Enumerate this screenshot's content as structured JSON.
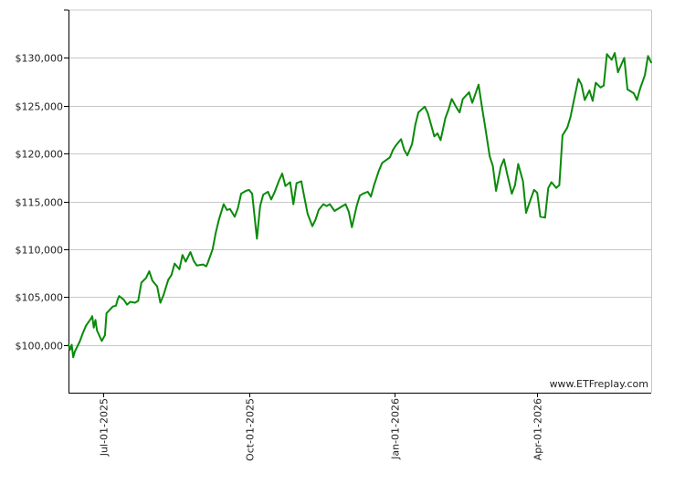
{
  "watermark": "www.ETFreplay.com",
  "colors": {
    "line": "#0a8a0a",
    "grid": "#c8c8c8",
    "axis": "#000000",
    "background": "#ffffff"
  },
  "chart_data": {
    "type": "line",
    "title": "",
    "xlabel": "",
    "ylabel": "",
    "ylim": [
      95000,
      135000
    ],
    "xlim": [
      "2025-06-09",
      "2026-06-12"
    ],
    "yticks": [
      100000,
      105000,
      110000,
      115000,
      120000,
      125000,
      130000
    ],
    "ytick_labels": [
      "$100,000",
      "$105,000",
      "$110,000",
      "$115,000",
      "$120,000",
      "$125,000",
      "$130,000"
    ],
    "xticks": [
      "2025-07-01",
      "2025-10-01",
      "2026-01-01",
      "2026-04-01"
    ],
    "xtick_labels": [
      "Jul-01-2025",
      "Oct-01-2025",
      "Jan-01-2026",
      "Apr-01-2026"
    ],
    "grid": "horizontal",
    "series": [
      {
        "x": [
          "2025-06-09",
          "2025-06-10",
          "2025-06-11",
          "2025-06-12",
          "2025-06-13",
          "2025-06-16",
          "2025-06-18",
          "2025-06-20",
          "2025-06-23",
          "2025-06-24",
          "2025-06-25",
          "2025-06-26",
          "2025-06-27",
          "2025-06-30",
          "2025-07-02",
          "2025-07-03",
          "2025-07-07",
          "2025-07-09",
          "2025-07-10",
          "2025-07-11",
          "2025-07-14",
          "2025-07-16",
          "2025-07-18",
          "2025-07-21",
          "2025-07-23",
          "2025-07-25",
          "2025-07-28",
          "2025-07-30",
          "2025-08-01",
          "2025-08-04",
          "2025-08-06",
          "2025-08-08",
          "2025-08-11",
          "2025-08-13",
          "2025-08-15",
          "2025-08-18",
          "2025-08-20",
          "2025-08-22",
          "2025-08-25",
          "2025-08-27",
          "2025-08-29",
          "2025-09-02",
          "2025-09-04",
          "2025-09-05",
          "2025-09-08",
          "2025-09-10",
          "2025-09-12",
          "2025-09-15",
          "2025-09-17",
          "2025-09-19",
          "2025-09-22",
          "2025-09-24",
          "2025-09-26",
          "2025-09-29",
          "2025-10-01",
          "2025-10-03",
          "2025-10-06",
          "2025-10-08",
          "2025-10-10",
          "2025-10-13",
          "2025-10-15",
          "2025-10-17",
          "2025-10-20",
          "2025-10-22",
          "2025-10-24",
          "2025-10-27",
          "2025-10-29",
          "2025-10-31",
          "2025-11-03",
          "2025-11-05",
          "2025-11-07",
          "2025-11-10",
          "2025-11-12",
          "2025-11-14",
          "2025-11-17",
          "2025-11-19",
          "2025-11-21",
          "2025-11-24",
          "2025-11-26",
          "2025-12-01",
          "2025-12-03",
          "2025-12-05",
          "2025-12-08",
          "2025-12-10",
          "2025-12-12",
          "2025-12-15",
          "2025-12-17",
          "2025-12-19",
          "2025-12-22",
          "2025-12-24",
          "2025-12-29",
          "2025-12-31",
          "2026-01-02",
          "2026-01-05",
          "2026-01-07",
          "2026-01-09",
          "2026-01-12",
          "2026-01-14",
          "2026-01-16",
          "2026-01-20",
          "2026-01-22",
          "2026-01-26",
          "2026-01-28",
          "2026-01-30",
          "2026-02-02",
          "2026-02-04",
          "2026-02-06",
          "2026-02-09",
          "2026-02-11",
          "2026-02-13",
          "2026-02-17",
          "2026-02-19",
          "2026-02-23",
          "2026-02-25",
          "2026-02-27",
          "2026-03-02",
          "2026-03-04",
          "2026-03-06",
          "2026-03-09",
          "2026-03-11",
          "2026-03-13",
          "2026-03-16",
          "2026-03-18",
          "2026-03-20",
          "2026-03-23",
          "2026-03-25",
          "2026-03-27",
          "2026-03-30",
          "2026-04-01",
          "2026-04-03",
          "2026-04-06",
          "2026-04-08",
          "2026-04-10",
          "2026-04-13",
          "2026-04-15",
          "2026-04-17",
          "2026-04-20",
          "2026-04-22",
          "2026-04-24",
          "2026-04-27",
          "2026-04-29",
          "2026-05-01",
          "2026-05-04",
          "2026-05-06",
          "2026-05-08",
          "2026-05-11",
          "2026-05-13",
          "2026-05-15",
          "2026-05-18",
          "2026-05-20",
          "2026-05-22",
          "2026-05-26",
          "2026-05-28",
          "2026-06-01",
          "2026-06-03",
          "2026-06-05",
          "2026-06-08",
          "2026-06-10",
          "2026-06-12"
        ],
        "y": [
          100000,
          99500,
          100000,
          98700,
          99300,
          100300,
          101200,
          102000,
          102700,
          103000,
          101800,
          102600,
          101500,
          100400,
          101000,
          103300,
          104000,
          104100,
          104700,
          105100,
          104700,
          104200,
          104500,
          104400,
          104600,
          106500,
          107000,
          107700,
          106700,
          106100,
          104400,
          105200,
          106800,
          107300,
          108500,
          107900,
          109400,
          108700,
          109700,
          108800,
          108300,
          108400,
          108200,
          108600,
          110000,
          111700,
          113100,
          114700,
          114100,
          114200,
          113400,
          114300,
          115800,
          116100,
          116200,
          115800,
          111100,
          114500,
          115700,
          116000,
          115200,
          115900,
          117200,
          117900,
          116600,
          117000,
          114700,
          116900,
          117100,
          115400,
          113700,
          112400,
          113100,
          114100,
          114700,
          114500,
          114700,
          114000,
          114200,
          114700,
          113900,
          112300,
          114500,
          115600,
          115800,
          116000,
          115500,
          116700,
          118200,
          119000,
          119600,
          120400,
          120900,
          121500,
          120400,
          119800,
          121000,
          123000,
          124300,
          124900,
          124200,
          121800,
          122100,
          121400,
          123700,
          124600,
          125700,
          124800,
          124300,
          125700,
          126400,
          125300,
          127200,
          125000,
          122900,
          119700,
          118700,
          116100,
          118600,
          119400,
          117900,
          115800,
          116700,
          118900,
          117100,
          113800,
          114800,
          116200,
          115900,
          113400,
          113300,
          116400,
          117000,
          116400,
          116700,
          121900,
          122700,
          123800,
          125400,
          127800,
          127200,
          125600,
          126600,
          125500,
          127400,
          126900,
          127100,
          130400,
          129800,
          130500,
          128500,
          130000,
          126700,
          126300,
          125600,
          126800,
          128200,
          130200,
          129500
        ]
      }
    ]
  }
}
